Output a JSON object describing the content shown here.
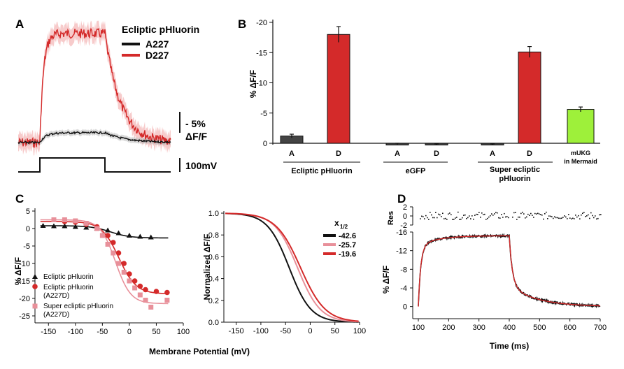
{
  "colors": {
    "black": "#111111",
    "red": "#d42a2a",
    "pink": "#e8909a",
    "green": "#9ef03a",
    "grey": "#444444",
    "lightred": "#f0a0a0",
    "lightgrey": "#bbbbbb"
  },
  "panelA": {
    "letter": "A",
    "legend_title": "Ecliptic pHluorin",
    "legend": [
      "A227",
      "D227"
    ],
    "scale_bar_y": "- 5%",
    "scale_bar_y2": "ΔF/F",
    "scale_bar_v": "100mV"
  },
  "panelB": {
    "letter": "B",
    "chart_data": {
      "type": "bar",
      "ylabel": "% ΔF/F",
      "ylim": [
        0,
        -20
      ],
      "yticks": [
        "-20",
        "-15",
        "-10",
        "-5",
        "0"
      ],
      "bars": [
        {
          "label": "A",
          "value": -1.2,
          "err": 0.3,
          "color": "#444444"
        },
        {
          "label": "D",
          "value": -18.0,
          "err": 1.3,
          "color": "#d42a2a"
        },
        {
          "label": "A",
          "value": 0.1,
          "err": 0.1,
          "color": "#444444"
        },
        {
          "label": "D",
          "value": 0.2,
          "err": 0.1,
          "color": "#444444"
        },
        {
          "label": "A",
          "value": 0.2,
          "err": 0.1,
          "color": "#444444"
        },
        {
          "label": "D",
          "value": -15.1,
          "err": 0.9,
          "color": "#d42a2a"
        },
        {
          "label": "mUKG\nin Mermaid",
          "value": -5.6,
          "err": 0.4,
          "color": "#9ef03a"
        }
      ],
      "groups": [
        "Ecliptic pHluorin",
        "eGFP",
        "Super ecliptic",
        "pHluorin"
      ],
      "extra_label_1": "mUKG",
      "extra_label_2": "in Mermaid"
    }
  },
  "panelC": {
    "letter": "C",
    "left": {
      "chart_data": {
        "type": "scatter",
        "ylabel": "% ΔF/F",
        "xlim": [
          -175,
          100
        ],
        "ylim": [
          -27,
          5
        ],
        "xticks": [
          "-150",
          "-100",
          "-50",
          "0",
          "50",
          "100"
        ],
        "yticks": [
          "5",
          "0",
          "-5",
          "-10",
          "-15",
          "-20",
          "-25"
        ],
        "series": [
          {
            "name": "Ecliptic pHluorin",
            "marker": "triangle",
            "color": "#111111",
            "x": [
              -160,
              -140,
              -120,
              -100,
              -80,
              -60,
              -40,
              -20,
              0,
              20,
              40
            ],
            "y": [
              0.8,
              0.7,
              0.7,
              0.5,
              0.3,
              0,
              -0.5,
              -1.3,
              -2.0,
              -2.3,
              -2.5
            ]
          },
          {
            "name": "Ecliptic pHluorin",
            "name2": "(A227D)",
            "marker": "circle",
            "color": "#d42a2a",
            "x": [
              -120,
              -100,
              -80,
              -60,
              -40,
              -30,
              -20,
              -10,
              0,
              10,
              20,
              30,
              50,
              70
            ],
            "y": [
              2.0,
              1.8,
              1.2,
              0.5,
              -2,
              -4,
              -7,
              -10,
              -13,
              -15,
              -16.5,
              -17.5,
              -18,
              -18.3
            ]
          },
          {
            "name": "Super ecliptic pHluorin",
            "name2": "(A227D)",
            "marker": "square",
            "color": "#e8909a",
            "x": [
              -140,
              -120,
              -100,
              -80,
              -60,
              -50,
              -40,
              -30,
              -20,
              -10,
              0,
              10,
              20,
              30,
              40,
              70
            ],
            "y": [
              2.5,
              2.5,
              2.2,
              1.5,
              0,
              -2,
              -4.5,
              -7,
              -10,
              -12.5,
              -15,
              -17,
              -19,
              -20.5,
              -22.5,
              -20.5
            ]
          }
        ]
      }
    },
    "right": {
      "chart_data": {
        "type": "line",
        "ylabel": "Normalized ΔF/F",
        "xlim": [
          -175,
          100
        ],
        "ylim": [
          0,
          1
        ],
        "xticks": [
          "-150",
          "-100",
          "-50",
          "0",
          "50",
          "100"
        ],
        "yticks": [
          "1.0",
          "0.8",
          "0.6",
          "0.4",
          "0.2",
          "0.0"
        ],
        "legend_title": "x",
        "legend_sub": "1/2",
        "series": [
          {
            "name": "-42.6",
            "half": -42.6,
            "slope": 22,
            "color": "#111111"
          },
          {
            "name": "-25.7",
            "half": -25.7,
            "slope": 23,
            "color": "#e8909a"
          },
          {
            "name": "-19.6",
            "half": -19.6,
            "slope": 25,
            "color": "#d42a2a"
          }
        ]
      }
    },
    "xlabel": "Membrane Potential (mV)"
  },
  "panelD": {
    "letter": "D",
    "chart_data": {
      "type": "line",
      "xlabel": "Time (ms)",
      "ylabel": "% ΔF/F",
      "res_label": "Res",
      "xlim": [
        100,
        700
      ],
      "ylim": [
        2,
        -16
      ],
      "xticks": [
        "100",
        "200",
        "300",
        "400",
        "500",
        "600",
        "700"
      ],
      "yticks": [
        "-16",
        "-12",
        "-8",
        "-4",
        "0"
      ],
      "res_yticks": [
        "2",
        "0",
        "-2"
      ]
    }
  }
}
